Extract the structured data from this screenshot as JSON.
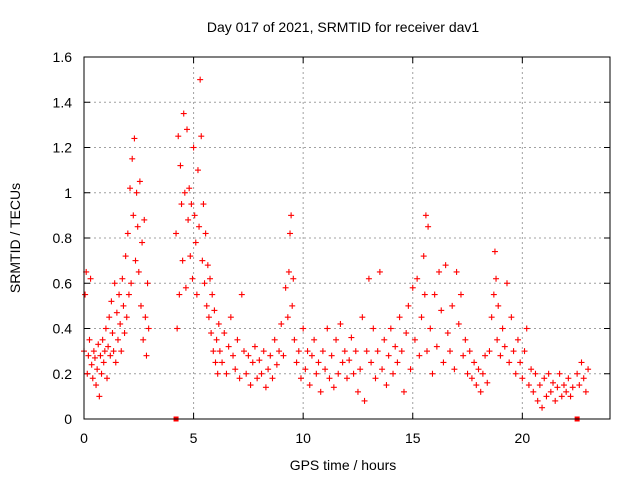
{
  "chart_data": {
    "type": "scatter",
    "title": "Day 017 of 2021, SRMTID for receiver dav1",
    "xlabel": "GPS time / hours",
    "ylabel": "SRMTID / TECUs",
    "xlim": [
      0,
      24
    ],
    "ylim": [
      0,
      1.6
    ],
    "grid": true,
    "marker": "+",
    "color": "#ff0000",
    "x_ticks": [
      0,
      5,
      10,
      15,
      20
    ],
    "x_tick_labels": [
      "0",
      "5",
      "10",
      "15",
      "20"
    ],
    "y_ticks": [
      0,
      0.2,
      0.4,
      0.6,
      0.8,
      1.0,
      1.2,
      1.4,
      1.6
    ],
    "y_tick_labels": [
      "0",
      "0.2",
      "0.4",
      "0.6",
      "0.8",
      "1",
      "1.2",
      "1.4",
      "1.6"
    ],
    "series": [
      {
        "name": "SRMTID",
        "points": [
          [
            0.0,
            0.3
          ],
          [
            0.05,
            0.55
          ],
          [
            0.1,
            0.65
          ],
          [
            0.15,
            0.2
          ],
          [
            0.2,
            0.28
          ],
          [
            0.25,
            0.35
          ],
          [
            0.3,
            0.62
          ],
          [
            0.35,
            0.24
          ],
          [
            0.4,
            0.18
          ],
          [
            0.45,
            0.3
          ],
          [
            0.5,
            0.27
          ],
          [
            0.55,
            0.15
          ],
          [
            0.6,
            0.22
          ],
          [
            0.65,
            0.33
          ],
          [
            0.7,
            0.1
          ],
          [
            0.75,
            0.28
          ],
          [
            0.8,
            0.2
          ],
          [
            0.85,
            0.35
          ],
          [
            0.9,
            0.25
          ],
          [
            0.95,
            0.3
          ],
          [
            1.0,
            0.4
          ],
          [
            1.05,
            0.18
          ],
          [
            1.1,
            0.32
          ],
          [
            1.15,
            0.45
          ],
          [
            1.2,
            0.28
          ],
          [
            1.25,
            0.52
          ],
          [
            1.3,
            0.38
          ],
          [
            1.35,
            0.3
          ],
          [
            1.4,
            0.6
          ],
          [
            1.45,
            0.25
          ],
          [
            1.5,
            0.47
          ],
          [
            1.55,
            0.35
          ],
          [
            1.6,
            0.55
          ],
          [
            1.65,
            0.42
          ],
          [
            1.7,
            0.3
          ],
          [
            1.75,
            0.62
          ],
          [
            1.8,
            0.5
          ],
          [
            1.85,
            0.38
          ],
          [
            1.9,
            0.72
          ],
          [
            1.95,
            0.45
          ],
          [
            2.0,
            0.82
          ],
          [
            2.05,
            0.55
          ],
          [
            2.1,
            1.02
          ],
          [
            2.15,
            0.6
          ],
          [
            2.2,
            1.15
          ],
          [
            2.25,
            0.9
          ],
          [
            2.3,
            1.24
          ],
          [
            2.35,
            0.7
          ],
          [
            2.4,
            1.0
          ],
          [
            2.45,
            0.85
          ],
          [
            2.5,
            0.65
          ],
          [
            2.55,
            1.05
          ],
          [
            2.6,
            0.5
          ],
          [
            2.65,
            0.78
          ],
          [
            2.7,
            0.35
          ],
          [
            2.75,
            0.88
          ],
          [
            2.8,
            0.45
          ],
          [
            2.85,
            0.28
          ],
          [
            2.9,
            0.6
          ],
          [
            2.95,
            0.4
          ],
          [
            4.2,
            0.82
          ],
          [
            4.25,
            0.4
          ],
          [
            4.3,
            1.25
          ],
          [
            4.35,
            0.55
          ],
          [
            4.4,
            1.12
          ],
          [
            4.45,
            0.95
          ],
          [
            4.5,
            0.7
          ],
          [
            4.55,
            1.35
          ],
          [
            4.6,
            1.0
          ],
          [
            4.65,
            0.58
          ],
          [
            4.7,
            1.28
          ],
          [
            4.75,
            0.88
          ],
          [
            4.8,
            1.02
          ],
          [
            4.85,
            0.72
          ],
          [
            4.9,
            0.95
          ],
          [
            4.95,
            0.62
          ],
          [
            5.0,
            1.2
          ],
          [
            5.05,
            0.9
          ],
          [
            5.1,
            0.78
          ],
          [
            5.15,
            0.55
          ],
          [
            5.2,
            1.1
          ],
          [
            5.25,
            0.85
          ],
          [
            5.3,
            1.5
          ],
          [
            5.35,
            1.25
          ],
          [
            5.4,
            0.7
          ],
          [
            5.45,
            0.95
          ],
          [
            5.5,
            0.6
          ],
          [
            5.55,
            0.82
          ],
          [
            5.6,
            0.5
          ],
          [
            5.65,
            0.68
          ],
          [
            5.7,
            0.45
          ],
          [
            5.75,
            0.62
          ],
          [
            5.8,
            0.38
          ],
          [
            5.85,
            0.55
          ],
          [
            5.9,
            0.3
          ],
          [
            5.95,
            0.48
          ],
          [
            6.0,
            0.25
          ],
          [
            6.05,
            0.35
          ],
          [
            6.1,
            0.2
          ],
          [
            6.15,
            0.42
          ],
          [
            6.2,
            0.3
          ],
          [
            6.3,
            0.25
          ],
          [
            6.4,
            0.38
          ],
          [
            6.5,
            0.2
          ],
          [
            6.6,
            0.32
          ],
          [
            6.7,
            0.45
          ],
          [
            6.8,
            0.28
          ],
          [
            6.9,
            0.22
          ],
          [
            7.0,
            0.35
          ],
          [
            7.1,
            0.18
          ],
          [
            7.2,
            0.55
          ],
          [
            7.3,
            0.3
          ],
          [
            7.4,
            0.2
          ],
          [
            7.5,
            0.28
          ],
          [
            7.6,
            0.15
          ],
          [
            7.7,
            0.25
          ],
          [
            7.8,
            0.32
          ],
          [
            7.9,
            0.18
          ],
          [
            8.0,
            0.26
          ],
          [
            8.1,
            0.2
          ],
          [
            8.2,
            0.3
          ],
          [
            8.3,
            0.14
          ],
          [
            8.4,
            0.22
          ],
          [
            8.5,
            0.28
          ],
          [
            8.6,
            0.18
          ],
          [
            8.7,
            0.35
          ],
          [
            8.8,
            0.24
          ],
          [
            8.9,
            0.3
          ],
          [
            9.0,
            0.42
          ],
          [
            9.1,
            0.28
          ],
          [
            9.2,
            0.58
          ],
          [
            9.3,
            0.45
          ],
          [
            9.35,
            0.65
          ],
          [
            9.4,
            0.82
          ],
          [
            9.45,
            0.9
          ],
          [
            9.5,
            0.5
          ],
          [
            9.55,
            0.62
          ],
          [
            9.6,
            0.35
          ],
          [
            9.7,
            0.25
          ],
          [
            9.8,
            0.3
          ],
          [
            9.9,
            0.18
          ],
          [
            10.0,
            0.4
          ],
          [
            10.1,
            0.22
          ],
          [
            10.2,
            0.3
          ],
          [
            10.3,
            0.15
          ],
          [
            10.4,
            0.28
          ],
          [
            10.5,
            0.35
          ],
          [
            10.6,
            0.2
          ],
          [
            10.7,
            0.25
          ],
          [
            10.8,
            0.12
          ],
          [
            10.9,
            0.3
          ],
          [
            11.0,
            0.22
          ],
          [
            11.1,
            0.4
          ],
          [
            11.2,
            0.18
          ],
          [
            11.3,
            0.28
          ],
          [
            11.4,
            0.14
          ],
          [
            11.5,
            0.35
          ],
          [
            11.6,
            0.2
          ],
          [
            11.7,
            0.42
          ],
          [
            11.8,
            0.25
          ],
          [
            11.9,
            0.3
          ],
          [
            12.0,
            0.18
          ],
          [
            12.1,
            0.26
          ],
          [
            12.2,
            0.36
          ],
          [
            12.3,
            0.2
          ],
          [
            12.4,
            0.3
          ],
          [
            12.5,
            0.12
          ],
          [
            12.6,
            0.22
          ],
          [
            12.7,
            0.45
          ],
          [
            12.8,
            0.08
          ],
          [
            12.9,
            0.3
          ],
          [
            13.0,
            0.62
          ],
          [
            13.1,
            0.25
          ],
          [
            13.2,
            0.4
          ],
          [
            13.3,
            0.18
          ],
          [
            13.4,
            0.3
          ],
          [
            13.5,
            0.65
          ],
          [
            13.6,
            0.22
          ],
          [
            13.7,
            0.35
          ],
          [
            13.8,
            0.15
          ],
          [
            13.9,
            0.28
          ],
          [
            14.0,
            0.4
          ],
          [
            14.1,
            0.2
          ],
          [
            14.2,
            0.32
          ],
          [
            14.3,
            0.25
          ],
          [
            14.4,
            0.45
          ],
          [
            14.5,
            0.3
          ],
          [
            14.6,
            0.12
          ],
          [
            14.7,
            0.38
          ],
          [
            14.8,
            0.5
          ],
          [
            14.9,
            0.22
          ],
          [
            15.0,
            0.58
          ],
          [
            15.1,
            0.35
          ],
          [
            15.2,
            0.62
          ],
          [
            15.3,
            0.28
          ],
          [
            15.4,
            0.45
          ],
          [
            15.5,
            0.72
          ],
          [
            15.55,
            0.55
          ],
          [
            15.6,
            0.9
          ],
          [
            15.65,
            0.3
          ],
          [
            15.7,
            0.85
          ],
          [
            15.8,
            0.4
          ],
          [
            15.9,
            0.2
          ],
          [
            16.0,
            0.55
          ],
          [
            16.1,
            0.32
          ],
          [
            16.2,
            0.65
          ],
          [
            16.3,
            0.48
          ],
          [
            16.4,
            0.25
          ],
          [
            16.5,
            0.68
          ],
          [
            16.6,
            0.38
          ],
          [
            16.7,
            0.3
          ],
          [
            16.8,
            0.5
          ],
          [
            16.9,
            0.22
          ],
          [
            17.0,
            0.65
          ],
          [
            17.1,
            0.42
          ],
          [
            17.2,
            0.55
          ],
          [
            17.3,
            0.28
          ],
          [
            17.4,
            0.35
          ],
          [
            17.5,
            0.2
          ],
          [
            17.6,
            0.3
          ],
          [
            17.7,
            0.18
          ],
          [
            17.8,
            0.25
          ],
          [
            17.9,
            0.15
          ],
          [
            18.0,
            0.22
          ],
          [
            18.1,
            0.12
          ],
          [
            18.2,
            0.2
          ],
          [
            18.3,
            0.28
          ],
          [
            18.4,
            0.16
          ],
          [
            18.5,
            0.3
          ],
          [
            18.6,
            0.45
          ],
          [
            18.7,
            0.55
          ],
          [
            18.75,
            0.74
          ],
          [
            18.8,
            0.62
          ],
          [
            18.85,
            0.35
          ],
          [
            18.9,
            0.5
          ],
          [
            19.0,
            0.28
          ],
          [
            19.1,
            0.4
          ],
          [
            19.2,
            0.32
          ],
          [
            19.3,
            0.6
          ],
          [
            19.4,
            0.25
          ],
          [
            19.5,
            0.45
          ],
          [
            19.6,
            0.3
          ],
          [
            19.7,
            0.2
          ],
          [
            19.8,
            0.35
          ],
          [
            19.9,
            0.25
          ],
          [
            20.0,
            0.18
          ],
          [
            20.1,
            0.3
          ],
          [
            20.2,
            0.4
          ],
          [
            20.3,
            0.15
          ],
          [
            20.4,
            0.22
          ],
          [
            20.5,
            0.12
          ],
          [
            20.6,
            0.2
          ],
          [
            20.7,
            0.08
          ],
          [
            20.8,
            0.15
          ],
          [
            20.9,
            0.05
          ],
          [
            21.0,
            0.18
          ],
          [
            21.1,
            0.1
          ],
          [
            21.2,
            0.2
          ],
          [
            21.3,
            0.12
          ],
          [
            21.4,
            0.16
          ],
          [
            21.5,
            0.08
          ],
          [
            21.6,
            0.14
          ],
          [
            21.7,
            0.2
          ],
          [
            21.8,
            0.1
          ],
          [
            21.9,
            0.15
          ],
          [
            22.0,
            0.12
          ],
          [
            22.1,
            0.18
          ],
          [
            22.2,
            0.1
          ],
          [
            22.3,
            0.14
          ],
          [
            22.5,
            0.2
          ],
          [
            22.6,
            0.15
          ],
          [
            22.7,
            0.25
          ],
          [
            22.8,
            0.18
          ],
          [
            22.9,
            0.12
          ],
          [
            23.0,
            0.22
          ]
        ]
      }
    ],
    "zero_markers": [
      4.2,
      22.5
    ]
  }
}
